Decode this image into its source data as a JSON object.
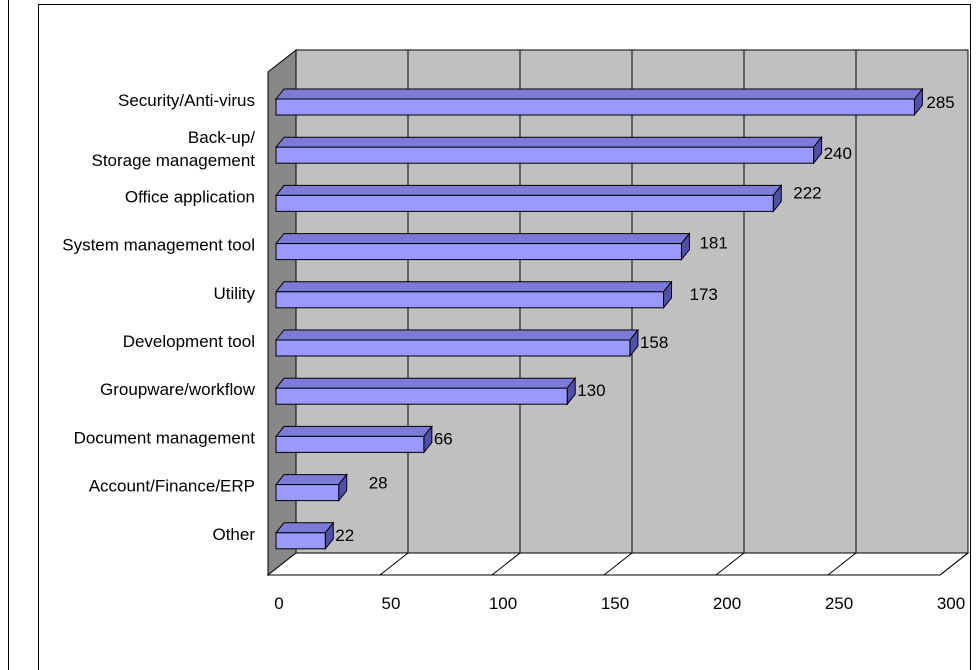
{
  "chart_data": {
    "type": "bar",
    "orientation": "horizontal",
    "style": "3d",
    "categories": [
      [
        "Security/Anti-virus"
      ],
      [
        "Back-up/",
        "Storage management"
      ],
      [
        "Office application"
      ],
      [
        "System management tool"
      ],
      [
        "Utility"
      ],
      [
        "Development tool"
      ],
      [
        "Groupware/workflow"
      ],
      [
        "Document management"
      ],
      [
        "Account/Finance/ERP"
      ],
      [
        "Other"
      ]
    ],
    "values": [
      285,
      240,
      222,
      181,
      173,
      158,
      130,
      66,
      28,
      22
    ],
    "value_labels": [
      "285",
      "240",
      "222",
      "181",
      "173",
      "158",
      "130",
      "66",
      "28",
      "22"
    ],
    "xlim": [
      0,
      300
    ],
    "xticks": [
      0,
      50,
      100,
      150,
      200,
      250,
      300
    ],
    "xtick_labels": [
      "0",
      "50",
      "100",
      "150",
      "200",
      "250",
      "300"
    ],
    "grid": "vertical",
    "legend": "none",
    "colors": {
      "bar_front": "#9999ff",
      "bar_top": "#7b7bd8",
      "bar_side": "#5050a8",
      "plot_back_wall": "#c0c0c0",
      "plot_side_wall": "#888888",
      "plot_floor": "#ffffff",
      "gridline": "#000000"
    }
  }
}
